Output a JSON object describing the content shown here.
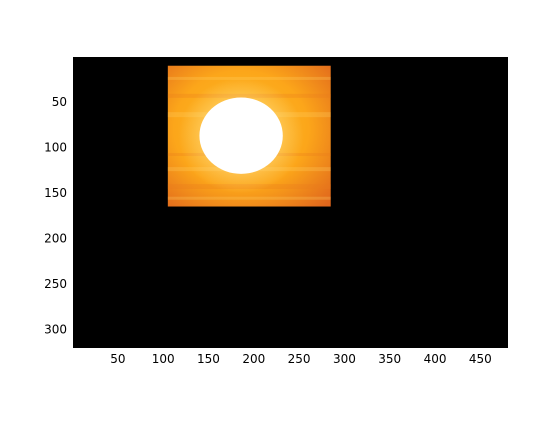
{
  "figure": {
    "background": "#ffffff"
  },
  "chart_data": {
    "type": "image",
    "title": "",
    "xlabel": "",
    "ylabel": "",
    "xlim": [
      0.5,
      480.5
    ],
    "ylim": [
      0.5,
      320.5
    ],
    "y_direction": "reversed",
    "grid": false,
    "legend": "none",
    "x_ticks": [
      50,
      100,
      150,
      200,
      250,
      300,
      350,
      400,
      450
    ],
    "y_ticks": [
      50,
      100,
      150,
      200,
      250,
      300
    ],
    "x_tick_labels": [
      "50",
      "100",
      "150",
      "200",
      "250",
      "300",
      "350",
      "400",
      "450"
    ],
    "y_tick_labels": [
      "50",
      "100",
      "150",
      "200",
      "250",
      "300"
    ],
    "axes_background": "#000000",
    "image": {
      "subject": "sun",
      "x_range": [
        105,
        285
      ],
      "y_range": [
        10,
        165
      ],
      "sun_center": [
        186,
        87
      ],
      "sun_radii": [
        46,
        42
      ],
      "colors": {
        "core": "#ffffff",
        "glow": "#ffe9a6",
        "sky_light": "#ffbf25",
        "sky_mid": "#fca61a",
        "sky_dark": "#e0661c"
      }
    }
  }
}
